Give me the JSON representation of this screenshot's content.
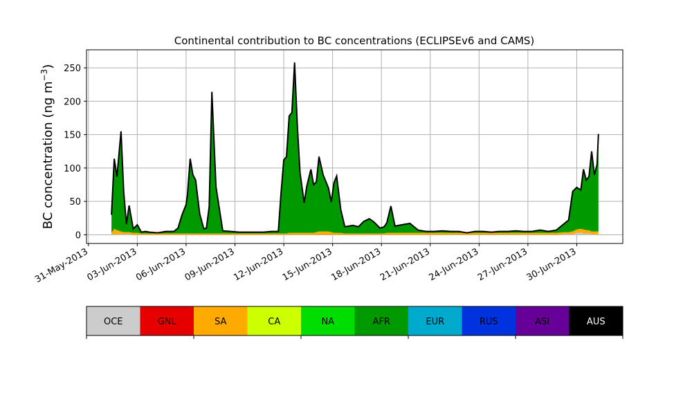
{
  "chart_data": {
    "type": "area",
    "title": "Continental contribution to BC concentrations (ECLIPSEv6 and CAMS)",
    "ylabel": "BC concentration (ng m",
    "ylabel_superscript": "−3",
    "ylabel_suffix": ")",
    "xlabel": "",
    "ylim": [
      -13,
      277
    ],
    "xlim": [
      "2013-05-31",
      "2013-07-02"
    ],
    "grid": true,
    "stacked": true,
    "y_ticks": [
      0,
      50,
      100,
      150,
      200,
      250
    ],
    "x_ticks": [
      "2013-05-31",
      "2013-06-03",
      "2013-06-06",
      "2013-06-09",
      "2013-06-12",
      "2013-06-15",
      "2013-06-18",
      "2013-06-21",
      "2013-06-24",
      "2013-06-27",
      "2013-06-30"
    ],
    "x_tick_labels": [
      "31-May-2013",
      "03-Jun-2013",
      "06-Jun-2013",
      "09-Jun-2013",
      "12-Jun-2013",
      "15-Jun-2013",
      "18-Jun-2013",
      "21-Jun-2013",
      "24-Jun-2013",
      "27-Jun-2013",
      "30-Jun-2013"
    ],
    "x": [
      "2013-06-01 10:00",
      "2013-06-01 14:00",
      "2013-06-01 18:00",
      "2013-06-02 00:00",
      "2013-06-02 04:00",
      "2013-06-02 08:00",
      "2013-06-02 12:00",
      "2013-06-02 18:00",
      "2013-06-03 00:00",
      "2013-06-03 06:00",
      "2013-06-03 12:00",
      "2013-06-03 18:00",
      "2013-06-04 06:00",
      "2013-06-04 18:00",
      "2013-06-05 06:00",
      "2013-06-05 12:00",
      "2013-06-05 18:00",
      "2013-06-06 00:00",
      "2013-06-06 02:00",
      "2013-06-06 06:00",
      "2013-06-06 10:00",
      "2013-06-06 14:00",
      "2013-06-06 20:00",
      "2013-06-07 02:00",
      "2013-06-07 06:00",
      "2013-06-07 10:00",
      "2013-06-07 14:00",
      "2013-06-07 20:00",
      "2013-06-08 06:00",
      "2013-06-08 18:00",
      "2013-06-09 06:00",
      "2013-06-09 18:00",
      "2013-06-10 06:00",
      "2013-06-10 18:00",
      "2013-06-11 06:00",
      "2013-06-11 12:00",
      "2013-06-11 16:00",
      "2013-06-11 20:00",
      "2013-06-12 00:00",
      "2013-06-12 04:00",
      "2013-06-12 08:00",
      "2013-06-12 12:00",
      "2013-06-12 16:00",
      "2013-06-12 20:00",
      "2013-06-13 00:00",
      "2013-06-13 06:00",
      "2013-06-13 10:00",
      "2013-06-13 16:00",
      "2013-06-13 20:00",
      "2013-06-14 00:00",
      "2013-06-14 04:00",
      "2013-06-14 10:00",
      "2013-06-14 18:00",
      "2013-06-14 22:00",
      "2013-06-15 02:00",
      "2013-06-15 06:00",
      "2013-06-15 12:00",
      "2013-06-15 18:00",
      "2013-06-16 06:00",
      "2013-06-16 14:00",
      "2013-06-16 22:00",
      "2013-06-17 06:00",
      "2013-06-17 12:00",
      "2013-06-17 18:00",
      "2013-06-17 22:00",
      "2013-06-18 04:00",
      "2013-06-18 08:00",
      "2013-06-18 14:00",
      "2013-06-18 20:00",
      "2013-06-19 06:00",
      "2013-06-19 18:00",
      "2013-06-20 06:00",
      "2013-06-20 18:00",
      "2013-06-21 06:00",
      "2013-06-21 18:00",
      "2013-06-22 06:00",
      "2013-06-22 18:00",
      "2013-06-23 06:00",
      "2013-06-23 18:00",
      "2013-06-24 06:00",
      "2013-06-24 18:00",
      "2013-06-25 06:00",
      "2013-06-25 18:00",
      "2013-06-26 06:00",
      "2013-06-26 18:00",
      "2013-06-27 06:00",
      "2013-06-27 18:00",
      "2013-06-28 06:00",
      "2013-06-28 18:00",
      "2013-06-29 06:00",
      "2013-06-29 12:00",
      "2013-06-29 18:00",
      "2013-06-30 00:00",
      "2013-06-30 06:00",
      "2013-06-30 10:00",
      "2013-06-30 14:00",
      "2013-06-30 18:00",
      "2013-06-30 22:00",
      "2013-07-01 02:00",
      "2013-07-01 06:00",
      "2013-07-01 08:00"
    ],
    "series": [
      {
        "name": "OCE",
        "color": "#cccccc",
        "values": [
          0,
          1,
          1,
          1,
          1,
          1,
          1,
          0,
          0,
          0,
          0,
          0,
          0,
          0,
          0,
          0,
          0,
          0,
          0,
          0,
          0,
          0,
          0,
          0,
          0,
          0,
          0,
          0,
          0,
          0,
          0,
          0,
          0,
          0,
          0,
          0,
          0,
          0,
          0,
          0,
          0,
          0,
          0,
          0,
          0,
          0,
          0,
          0,
          0,
          0,
          0,
          0,
          0,
          0,
          0,
          0,
          0,
          0,
          0,
          0,
          0,
          0,
          0,
          0,
          0,
          0,
          0,
          0,
          0,
          0,
          0,
          0,
          0,
          0,
          0,
          0,
          0,
          0,
          0,
          0,
          0,
          0,
          0,
          0,
          0,
          0,
          0,
          0,
          0,
          1,
          1,
          1,
          3,
          3,
          2,
          2,
          2,
          1,
          1,
          1,
          1
        ]
      },
      {
        "name": "GNL",
        "color": "#e60000",
        "values": [
          0,
          0,
          0,
          0,
          0,
          0,
          0,
          0,
          0,
          0,
          0,
          0,
          0,
          0,
          0,
          0,
          0,
          0,
          0,
          0,
          0,
          0,
          0,
          0,
          0,
          0,
          0,
          0,
          0,
          0,
          0,
          0,
          0,
          0,
          0,
          0,
          0,
          0,
          0,
          0,
          0,
          0,
          0,
          0,
          0,
          0,
          0,
          0,
          0,
          0,
          0,
          0,
          0,
          0,
          0,
          0,
          0,
          0,
          0,
          0,
          0,
          0,
          0,
          0,
          0,
          0,
          0,
          0,
          0,
          0,
          0,
          0,
          0,
          0,
          0,
          0,
          0,
          0,
          0,
          0,
          0,
          0,
          0,
          0,
          0,
          0,
          0,
          0,
          0,
          0,
          0,
          0,
          0,
          0,
          0,
          0,
          0,
          0,
          0,
          0,
          0
        ]
      },
      {
        "name": "SA",
        "color": "#ffaa00",
        "values": [
          3,
          8,
          6,
          4,
          3,
          3,
          3,
          3,
          3,
          2,
          2,
          2,
          2,
          2,
          2,
          2,
          2,
          2,
          2,
          2,
          2,
          2,
          2,
          2,
          2,
          2,
          2,
          2,
          2,
          2,
          2,
          2,
          2,
          2,
          2,
          2,
          2,
          2,
          2,
          2,
          3,
          3,
          3,
          3,
          3,
          3,
          3,
          3,
          3,
          4,
          5,
          5,
          5,
          4,
          3,
          3,
          3,
          2,
          2,
          2,
          2,
          2,
          2,
          2,
          2,
          2,
          3,
          3,
          3,
          3,
          3,
          3,
          3,
          3,
          3,
          3,
          3,
          3,
          3,
          3,
          3,
          3,
          3,
          3,
          3,
          3,
          3,
          3,
          3,
          3,
          3,
          4,
          5,
          6,
          6,
          5,
          5,
          4,
          4,
          4,
          4
        ]
      },
      {
        "name": "CA",
        "color": "#ccff00",
        "values": [
          0,
          0,
          0,
          0,
          0,
          0,
          0,
          0,
          0,
          0,
          0,
          0,
          0,
          0,
          0,
          0,
          0,
          0,
          0,
          0,
          0,
          0,
          0,
          0,
          0,
          0,
          0,
          0,
          0,
          0,
          0,
          0,
          0,
          0,
          0,
          0,
          0,
          0,
          0,
          0,
          0,
          0,
          0,
          0,
          0,
          0,
          0,
          0,
          0,
          0,
          0,
          0,
          0,
          0,
          0,
          0,
          0,
          0,
          0,
          0,
          0,
          0,
          0,
          0,
          0,
          0,
          0,
          0,
          0,
          0,
          0,
          0,
          0,
          0,
          0,
          0,
          0,
          0,
          0,
          0,
          0,
          0,
          0,
          0,
          0,
          0,
          0,
          0,
          0,
          0,
          0,
          0,
          0,
          0,
          0,
          0,
          0,
          0,
          0,
          0,
          0
        ]
      },
      {
        "name": "NA",
        "color": "#00dd00",
        "values": [
          0,
          0,
          0,
          0,
          0,
          0,
          0,
          0,
          0,
          0,
          0,
          0,
          0,
          0,
          0,
          0,
          0,
          0,
          0,
          0,
          0,
          0,
          0,
          0,
          0,
          0,
          0,
          0,
          0,
          0,
          0,
          0,
          0,
          0,
          0,
          0,
          0,
          0,
          0,
          0,
          0,
          0,
          0,
          0,
          0,
          0,
          0,
          0,
          0,
          0,
          0,
          0,
          0,
          0,
          0,
          0,
          0,
          0,
          0,
          0,
          0,
          0,
          0,
          0,
          0,
          0,
          0,
          0,
          0,
          0,
          0,
          0,
          0,
          0,
          0,
          0,
          0,
          0,
          0,
          0,
          0,
          0,
          0,
          0,
          0,
          0,
          0,
          0,
          0,
          0,
          0,
          0,
          0,
          0,
          0,
          0,
          0,
          0,
          0,
          0,
          0
        ]
      },
      {
        "name": "AFR",
        "color": "#009900",
        "values": [
          27,
          105,
          80,
          150,
          60,
          12,
          40,
          6,
          12,
          2,
          3,
          2,
          1,
          3,
          3,
          8,
          28,
          43,
          58,
          112,
          88,
          80,
          30,
          7,
          8,
          40,
          212,
          70,
          4,
          3,
          2,
          2,
          2,
          2,
          3,
          3,
          3,
          60,
          110,
          115,
          175,
          180,
          255,
          160,
          90,
          45,
          70,
          95,
          72,
          75,
          112,
          85,
          65,
          45,
          75,
          85,
          35,
          10,
          12,
          10,
          18,
          22,
          18,
          12,
          8,
          10,
          15,
          40,
          10,
          12,
          14,
          4,
          2,
          2,
          3,
          2,
          2,
          0,
          2,
          2,
          1,
          2,
          2,
          3,
          2,
          2,
          4,
          2,
          4,
          13,
          18,
          60,
          63,
          58,
          90,
          75,
          80,
          120,
          85,
          100,
          146
        ]
      },
      {
        "name": "EUR",
        "color": "#00aacc",
        "values": [
          0,
          0,
          0,
          0,
          0,
          0,
          0,
          0,
          0,
          0,
          0,
          0,
          0,
          0,
          0,
          0,
          0,
          0,
          0,
          0,
          0,
          0,
          0,
          0,
          0,
          0,
          0,
          0,
          0,
          0,
          0,
          0,
          0,
          0,
          0,
          0,
          0,
          0,
          0,
          0,
          0,
          0,
          0,
          0,
          0,
          0,
          0,
          0,
          0,
          0,
          0,
          0,
          0,
          0,
          0,
          0,
          0,
          0,
          0,
          0,
          0,
          0,
          0,
          0,
          0,
          0,
          0,
          0,
          0,
          0,
          0,
          0,
          0,
          0,
          0,
          0,
          0,
          0,
          0,
          0,
          0,
          0,
          0,
          0,
          0,
          0,
          0,
          0,
          0,
          0,
          0,
          0,
          0,
          0,
          0,
          0,
          0,
          0,
          0,
          0,
          0
        ]
      },
      {
        "name": "RUS",
        "color": "#0033dd",
        "values": [
          0,
          0,
          0,
          0,
          0,
          0,
          0,
          0,
          0,
          0,
          0,
          0,
          0,
          0,
          0,
          0,
          0,
          0,
          0,
          0,
          0,
          0,
          0,
          0,
          0,
          0,
          0,
          0,
          0,
          0,
          0,
          0,
          0,
          0,
          0,
          0,
          0,
          0,
          0,
          0,
          0,
          0,
          0,
          0,
          0,
          0,
          0,
          0,
          0,
          0,
          0,
          0,
          0,
          0,
          0,
          0,
          0,
          0,
          0,
          0,
          0,
          0,
          0,
          0,
          0,
          0,
          0,
          0,
          0,
          0,
          0,
          0,
          0,
          0,
          0,
          0,
          0,
          0,
          0,
          0,
          0,
          0,
          0,
          0,
          0,
          0,
          0,
          0,
          0,
          0,
          0,
          0,
          0,
          0,
          0,
          0,
          0,
          0,
          0,
          0,
          0
        ]
      },
      {
        "name": "ASI",
        "color": "#660099",
        "values": [
          0,
          0,
          0,
          0,
          0,
          0,
          0,
          0,
          0,
          0,
          0,
          0,
          0,
          0,
          0,
          0,
          0,
          0,
          0,
          0,
          0,
          0,
          0,
          0,
          0,
          0,
          0,
          0,
          0,
          0,
          0,
          0,
          0,
          0,
          0,
          0,
          0,
          0,
          0,
          0,
          0,
          0,
          0,
          0,
          0,
          0,
          0,
          0,
          0,
          0,
          0,
          0,
          0,
          0,
          0,
          0,
          0,
          0,
          0,
          0,
          0,
          0,
          0,
          0,
          0,
          0,
          0,
          0,
          0,
          0,
          0,
          0,
          0,
          0,
          0,
          0,
          0,
          0,
          0,
          0,
          0,
          0,
          0,
          0,
          0,
          0,
          0,
          0,
          0,
          0,
          0,
          0,
          0,
          0,
          0,
          0,
          0,
          0,
          0,
          0,
          0
        ]
      },
      {
        "name": "AUS",
        "color": "#000000",
        "values": [
          0,
          0,
          0,
          0,
          0,
          0,
          0,
          0,
          0,
          0,
          0,
          0,
          0,
          0,
          0,
          0,
          0,
          0,
          0,
          0,
          0,
          0,
          0,
          0,
          0,
          0,
          0,
          0,
          0,
          0,
          0,
          0,
          0,
          0,
          0,
          0,
          0,
          0,
          0,
          0,
          0,
          0,
          0,
          0,
          0,
          0,
          0,
          0,
          0,
          0,
          0,
          0,
          0,
          0,
          0,
          0,
          0,
          0,
          0,
          0,
          0,
          0,
          0,
          0,
          0,
          0,
          0,
          0,
          0,
          0,
          0,
          0,
          0,
          0,
          0,
          0,
          0,
          0,
          0,
          0,
          0,
          0,
          0,
          0,
          0,
          0,
          0,
          0,
          0,
          0,
          0,
          0,
          0,
          0,
          0,
          0,
          0,
          0,
          0,
          0,
          0
        ]
      }
    ],
    "total_line_color": "#000000",
    "grid_color": "#b0b0b0"
  }
}
